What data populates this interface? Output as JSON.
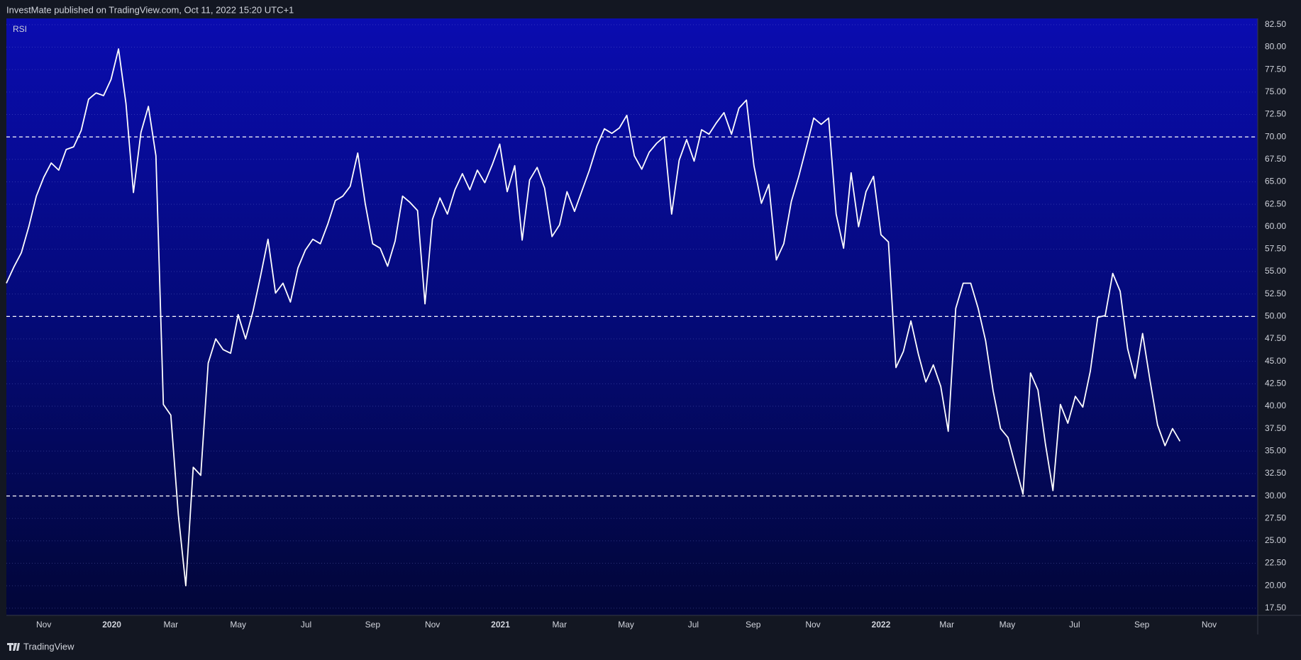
{
  "header": {
    "title": "InvestMate published on TradingView.com, Oct 11, 2022 15:20 UTC+1"
  },
  "footer": {
    "brand": "TradingView"
  },
  "chart_data": {
    "type": "line",
    "title": "RSI",
    "color": "#ffffff",
    "values": [
      53.7,
      55.5,
      57.1,
      60.0,
      63.4,
      65.5,
      67.1,
      66.3,
      68.6,
      68.9,
      70.7,
      74.2,
      74.9,
      74.6,
      76.4,
      79.8,
      73.7,
      63.8,
      70.5,
      73.4,
      67.9,
      40.2,
      39.0,
      27.9,
      20.0,
      33.2,
      32.3,
      44.8,
      47.5,
      46.3,
      45.9,
      50.2,
      47.5,
      50.6,
      54.5,
      58.6,
      52.6,
      53.7,
      51.6,
      55.4,
      57.4,
      58.6,
      58.1,
      60.3,
      62.9,
      63.4,
      64.5,
      68.2,
      62.6,
      58.1,
      57.6,
      55.6,
      58.4,
      63.4,
      62.7,
      61.8,
      51.4,
      60.8,
      63.2,
      61.4,
      64.1,
      65.9,
      64.1,
      66.3,
      64.9,
      66.9,
      69.2,
      63.9,
      66.8,
      58.5,
      65.2,
      66.6,
      64.3,
      58.9,
      60.2,
      63.9,
      61.7,
      64.0,
      66.3,
      69.0,
      70.9,
      70.4,
      71.0,
      72.4,
      67.9,
      66.4,
      68.3,
      69.3,
      70.0,
      61.4,
      67.4,
      69.7,
      67.3,
      70.8,
      70.3,
      71.6,
      72.7,
      70.3,
      73.2,
      74.1,
      66.8,
      62.6,
      64.7,
      56.3,
      58.1,
      62.8,
      65.6,
      68.8,
      72.1,
      71.4,
      72.1,
      61.4,
      57.6,
      66.0,
      60.0,
      63.9,
      65.6,
      59.1,
      58.3,
      44.3,
      46.1,
      49.5,
      45.8,
      42.7,
      44.6,
      42.2,
      37.2,
      50.9,
      53.7,
      53.7,
      50.9,
      47.3,
      41.7,
      37.5,
      36.5,
      33.3,
      30.2,
      43.7,
      41.8,
      35.8,
      30.6,
      40.2,
      38.1,
      41.1,
      39.9,
      43.9,
      49.9,
      50.1,
      54.8,
      52.8,
      46.4,
      43.1,
      48.1,
      42.8,
      37.9,
      35.6,
      37.5,
      36.1
    ],
    "xlim": [
      0,
      167.4
    ],
    "xticks": [
      {
        "value": 5.0,
        "label": "Nov"
      },
      {
        "value": 14.1,
        "label": "2020"
      },
      {
        "value": 22.0,
        "label": "Mar"
      },
      {
        "value": 31.0,
        "label": "May"
      },
      {
        "value": 40.1,
        "label": "Jul"
      },
      {
        "value": 49.0,
        "label": "Sep"
      },
      {
        "value": 57.0,
        "label": "Nov"
      },
      {
        "value": 66.1,
        "label": "2021"
      },
      {
        "value": 74.0,
        "label": "Mar"
      },
      {
        "value": 82.9,
        "label": "May"
      },
      {
        "value": 91.9,
        "label": "Jul"
      },
      {
        "value": 99.9,
        "label": "Sep"
      },
      {
        "value": 107.9,
        "label": "Nov"
      },
      {
        "value": 117.0,
        "label": "2022"
      },
      {
        "value": 125.8,
        "label": "Mar"
      },
      {
        "value": 133.9,
        "label": "May"
      },
      {
        "value": 142.9,
        "label": "Jul"
      },
      {
        "value": 151.9,
        "label": "Sep"
      },
      {
        "value": 160.9,
        "label": "Nov"
      }
    ],
    "ylim": [
      16.7,
      83.2
    ],
    "yticks": [
      {
        "value": 17.5,
        "label": "17.50"
      },
      {
        "value": 20,
        "label": "20.00"
      },
      {
        "value": 22.5,
        "label": "22.50"
      },
      {
        "value": 25,
        "label": "25.00"
      },
      {
        "value": 27.5,
        "label": "27.50"
      },
      {
        "value": 30,
        "label": "30.00"
      },
      {
        "value": 32.5,
        "label": "32.50"
      },
      {
        "value": 35,
        "label": "35.00"
      },
      {
        "value": 37.5,
        "label": "37.50"
      },
      {
        "value": 40,
        "label": "40.00"
      },
      {
        "value": 42.5,
        "label": "42.50"
      },
      {
        "value": 45,
        "label": "45.00"
      },
      {
        "value": 47.5,
        "label": "47.50"
      },
      {
        "value": 50,
        "label": "50.00"
      },
      {
        "value": 52.5,
        "label": "52.50"
      },
      {
        "value": 55,
        "label": "55.00"
      },
      {
        "value": 57.5,
        "label": "57.50"
      },
      {
        "value": 60,
        "label": "60.00"
      },
      {
        "value": 62.5,
        "label": "62.50"
      },
      {
        "value": 65,
        "label": "65.00"
      },
      {
        "value": 67.5,
        "label": "67.50"
      },
      {
        "value": 70,
        "label": "70.00"
      },
      {
        "value": 72.5,
        "label": "72.50"
      },
      {
        "value": 75,
        "label": "75.00"
      },
      {
        "value": 77.5,
        "label": "77.50"
      },
      {
        "value": 80,
        "label": "80.00"
      },
      {
        "value": 82.5,
        "label": "82.50"
      }
    ],
    "hlines": [
      70,
      50,
      30
    ],
    "grid": true
  }
}
